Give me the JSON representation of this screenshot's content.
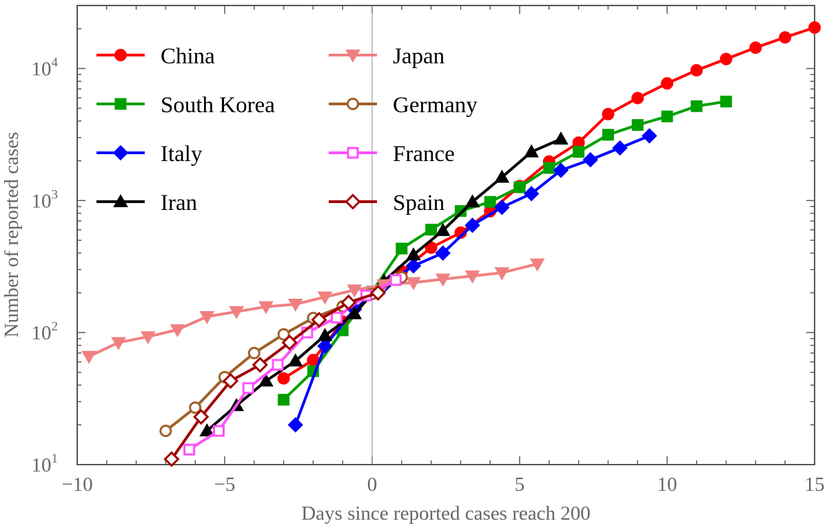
{
  "chart_data": {
    "type": "line",
    "title": "",
    "xlabel": "Days since reported cases reach 200",
    "ylabel": "Number of reported cases",
    "xlim": [
      -10,
      15
    ],
    "ylim": [
      10,
      30000
    ],
    "yscale": "log",
    "grid": false,
    "legend_position": "top-left",
    "x_ticks": [
      {
        "value": -10,
        "label": "−10"
      },
      {
        "value": -5,
        "label": "−5"
      },
      {
        "value": 0,
        "label": "0"
      },
      {
        "value": 5,
        "label": "5"
      },
      {
        "value": 10,
        "label": "10"
      },
      {
        "value": 15,
        "label": "15"
      }
    ],
    "y_ticks": [
      {
        "value": 10,
        "base": "10",
        "exp": "1"
      },
      {
        "value": 100,
        "base": "10",
        "exp": "2"
      },
      {
        "value": 1000,
        "base": "10",
        "exp": "3"
      },
      {
        "value": 10000,
        "base": "10",
        "exp": "4"
      }
    ],
    "series": [
      {
        "name": "China",
        "color": "#ff0000",
        "marker": "circle",
        "filled": true,
        "x": [
          -3,
          -2,
          -1,
          0,
          1,
          2,
          3,
          4,
          5,
          6,
          7,
          8,
          9,
          10,
          11,
          12,
          13,
          14,
          15
        ],
        "y": [
          45,
          62,
          121,
          198,
          291,
          440,
          571,
          830,
          1287,
          1975,
          2744,
          4515,
          5974,
          7711,
          9692,
          11791,
          14380,
          17205,
          20440
        ]
      },
      {
        "name": "South Korea",
        "color": "#00a000",
        "marker": "square",
        "filled": true,
        "x": [
          -3,
          -2,
          -1,
          0,
          1,
          2,
          3,
          4,
          5,
          6,
          7,
          8,
          9,
          10,
          11,
          12
        ],
        "y": [
          31,
          51,
          104,
          204,
          433,
          602,
          833,
          977,
          1261,
          1766,
          2337,
          3150,
          3736,
          4335,
          5186,
          5621
        ]
      },
      {
        "name": "Italy",
        "color": "#0000ff",
        "marker": "diamond",
        "filled": true,
        "x": [
          -2.6,
          -1.6,
          -0.6,
          0.4,
          1.4,
          2.4,
          3.4,
          4.4,
          5.4,
          6.4,
          7.4,
          8.4,
          9.4
        ],
        "y": [
          20,
          79,
          150,
          227,
          320,
          400,
          650,
          888,
          1128,
          1694,
          2036,
          2502,
          3089
        ]
      },
      {
        "name": "Iran",
        "color": "#000000",
        "marker": "triangle",
        "filled": true,
        "x": [
          -5.6,
          -4.6,
          -3.6,
          -2.6,
          -1.6,
          -0.6,
          0.4,
          1.4,
          2.4,
          3.4,
          4.4,
          5.4,
          6.4
        ],
        "y": [
          18,
          28,
          43,
          61,
          95,
          139,
          245,
          388,
          593,
          978,
          1501,
          2336,
          2922
        ]
      },
      {
        "name": "Japan",
        "color": "#f08080",
        "marker": "triangle-down",
        "filled": true,
        "x": [
          -9.6,
          -8.6,
          -7.6,
          -6.6,
          -5.6,
          -4.6,
          -3.6,
          -2.6,
          -1.6,
          -0.6,
          0.4,
          1.4,
          2.4,
          3.4,
          4.4,
          5.6
        ],
        "y": [
          66,
          84,
          93,
          105,
          132,
          144,
          157,
          164,
          186,
          210,
          230,
          239,
          254,
          268,
          284,
          331
        ]
      },
      {
        "name": "Germany",
        "color": "#a0602a",
        "marker": "circle",
        "filled": false,
        "x": [
          -7,
          -6,
          -5,
          -4,
          -3,
          -2,
          -1,
          0,
          1
        ],
        "y": [
          18,
          27,
          46,
          70,
          97,
          129,
          158,
          196,
          262
        ]
      },
      {
        "name": "France",
        "color": "#ff50ff",
        "marker": "square",
        "filled": false,
        "x": [
          -6.2,
          -5.2,
          -4.2,
          -3.2,
          -2.2,
          -1.2,
          -0.2,
          0.8
        ],
        "y": [
          13,
          18,
          38,
          57,
          100,
          130,
          191,
          250
        ]
      },
      {
        "name": "Spain",
        "color": "#a00000",
        "marker": "diamond",
        "filled": false,
        "x": [
          -6.8,
          -5.8,
          -4.8,
          -3.8,
          -2.8,
          -1.8,
          -0.8,
          0.2
        ],
        "y": [
          11,
          23,
          43,
          57,
          84,
          125,
          169,
          200
        ]
      }
    ]
  }
}
